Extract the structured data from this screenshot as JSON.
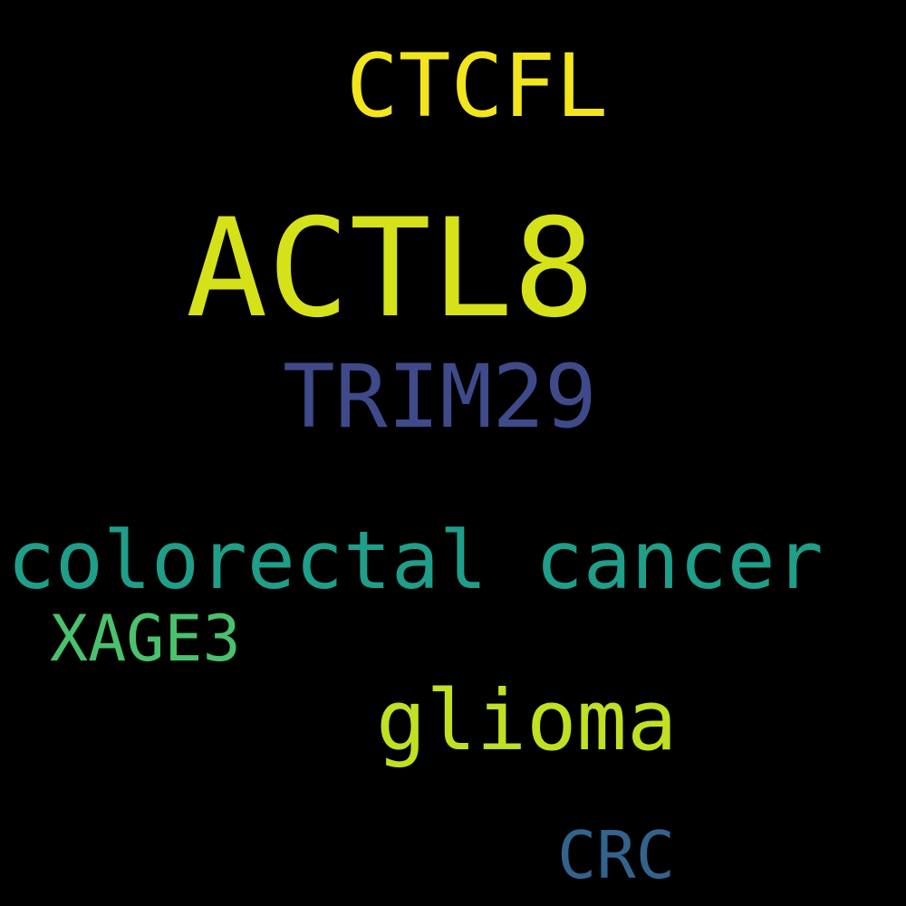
{
  "words": [
    {
      "text": "ACTL8",
      "color": "#d5e21a"
    },
    {
      "text": "CTCFL",
      "color": "#f2e51d"
    },
    {
      "text": "TRIM29",
      "color": "#3e4a89"
    },
    {
      "text": "colorectal cancer",
      "color": "#1f9e89"
    },
    {
      "text": "glioma",
      "color": "#c2df23"
    },
    {
      "text": "XAGE3",
      "color": "#4ac16d"
    },
    {
      "text": "CRC",
      "color": "#33638d"
    }
  ]
}
